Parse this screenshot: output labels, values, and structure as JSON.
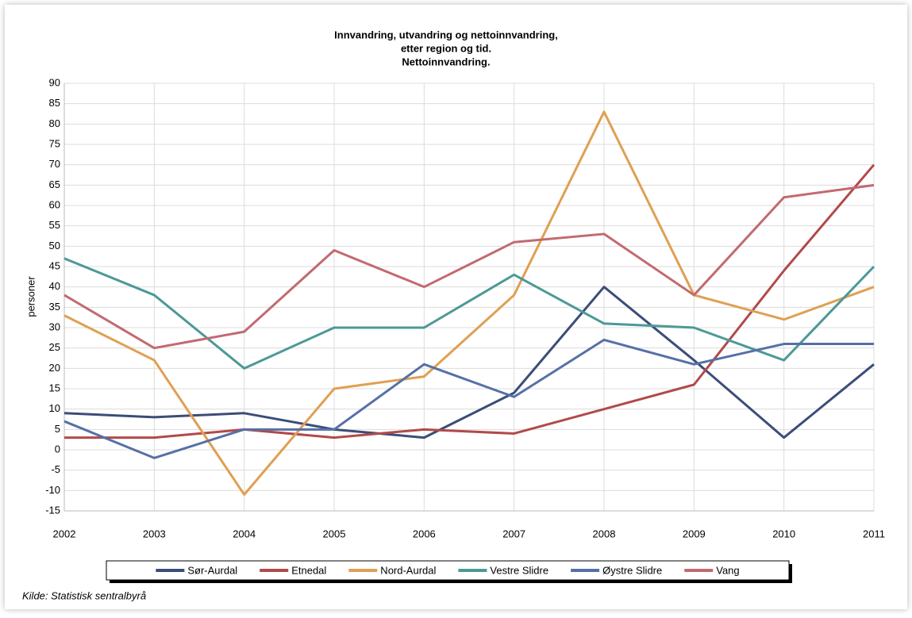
{
  "chart_data": {
    "type": "line",
    "title": [
      "Innvandring, utvandring og nettoinnvandring,",
      "etter region og tid.",
      "Nettoinnvandring."
    ],
    "y_label": "personer",
    "source": "Kilde: Statistisk sentralbyrå",
    "x": [
      2002,
      2003,
      2004,
      2005,
      2006,
      2007,
      2008,
      2009,
      2010,
      2011
    ],
    "xlim": [
      2002,
      2011
    ],
    "xticks": [
      2002,
      2003,
      2004,
      2005,
      2006,
      2007,
      2008,
      2009,
      2010,
      2011
    ],
    "ylim": [
      -15,
      90
    ],
    "yticks": [
      -15,
      -10,
      -5,
      0,
      5,
      10,
      15,
      20,
      25,
      30,
      35,
      40,
      45,
      50,
      55,
      60,
      65,
      70,
      75,
      80,
      85,
      90
    ],
    "grid": true,
    "legend": "bottom",
    "series": [
      {
        "name": "Sør-Aurdal",
        "color": "#3b4d78",
        "values": [
          9,
          8,
          9,
          5,
          3,
          14,
          40,
          22,
          3,
          21
        ]
      },
      {
        "name": "Etnedal",
        "color": "#b24a4a",
        "values": [
          3,
          3,
          5,
          3,
          5,
          4,
          10,
          16,
          44,
          70
        ]
      },
      {
        "name": "Nord-Aurdal",
        "color": "#dfa052",
        "values": [
          33,
          22,
          -11,
          15,
          18,
          38,
          83,
          38,
          32,
          40
        ]
      },
      {
        "name": "Vestre Slidre",
        "color": "#4c9996",
        "values": [
          47,
          38,
          20,
          30,
          30,
          43,
          31,
          30,
          22,
          45
        ]
      },
      {
        "name": "Øystre Slidre",
        "color": "#5670a6",
        "values": [
          7,
          -2,
          5,
          5,
          21,
          13,
          27,
          21,
          26,
          26
        ]
      },
      {
        "name": "Vang",
        "color": "#c26a70",
        "values": [
          38,
          25,
          29,
          49,
          40,
          51,
          53,
          38,
          62,
          65
        ]
      }
    ]
  }
}
